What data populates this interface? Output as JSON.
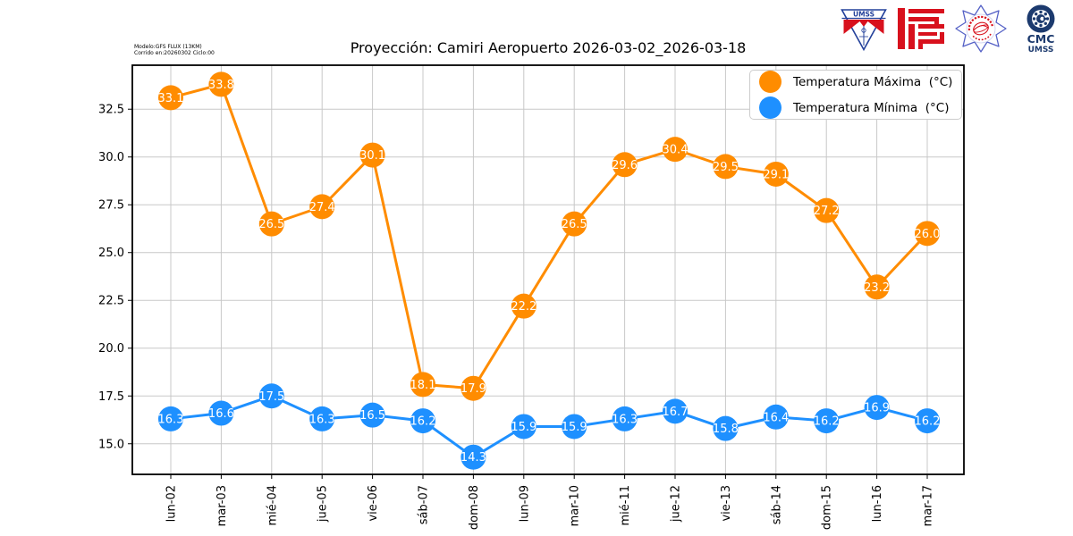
{
  "header": {
    "model_line1": "Modelo:GFS FLUX (13KM)",
    "model_line2": "Corrido en:20260302 Ciclo:00"
  },
  "logos": {
    "umss_pennant": {
      "text": "UMSS"
    },
    "cmc": {
      "line1": "CMC",
      "line2": "UMSS"
    }
  },
  "chart_data": {
    "type": "line",
    "title": "Proyección: Camiri Aeropuerto 2026-03-02_2026-03-18",
    "categories": [
      "lun-02",
      "mar-03",
      "mié-04",
      "jue-05",
      "vie-06",
      "sáb-07",
      "dom-08",
      "lun-09",
      "mar-10",
      "mié-11",
      "jue-12",
      "vie-13",
      "sáb-14",
      "dom-15",
      "lun-16",
      "mar-17"
    ],
    "series": [
      {
        "name": "Temperatura Máxima  (°C)",
        "color": "#ff8c00",
        "values": [
          33.1,
          33.8,
          26.5,
          27.4,
          30.1,
          18.1,
          17.9,
          22.2,
          26.5,
          29.6,
          30.4,
          29.5,
          29.1,
          27.2,
          23.2,
          26.0
        ]
      },
      {
        "name": "Temperatura Mínima  (°C)",
        "color": "#1e90ff",
        "values": [
          16.3,
          16.6,
          17.5,
          16.3,
          16.5,
          16.2,
          14.3,
          15.9,
          15.9,
          16.3,
          16.7,
          15.8,
          16.4,
          16.2,
          16.9,
          16.2
        ]
      }
    ],
    "xlabel": "",
    "ylabel": "",
    "yticks": [
      15.0,
      17.5,
      20.0,
      22.5,
      25.0,
      27.5,
      30.0,
      32.5
    ],
    "ylim": [
      13.4,
      34.8
    ],
    "grid": true,
    "legend_position": "upper right",
    "marker_radius": 14,
    "line_width": 3
  }
}
